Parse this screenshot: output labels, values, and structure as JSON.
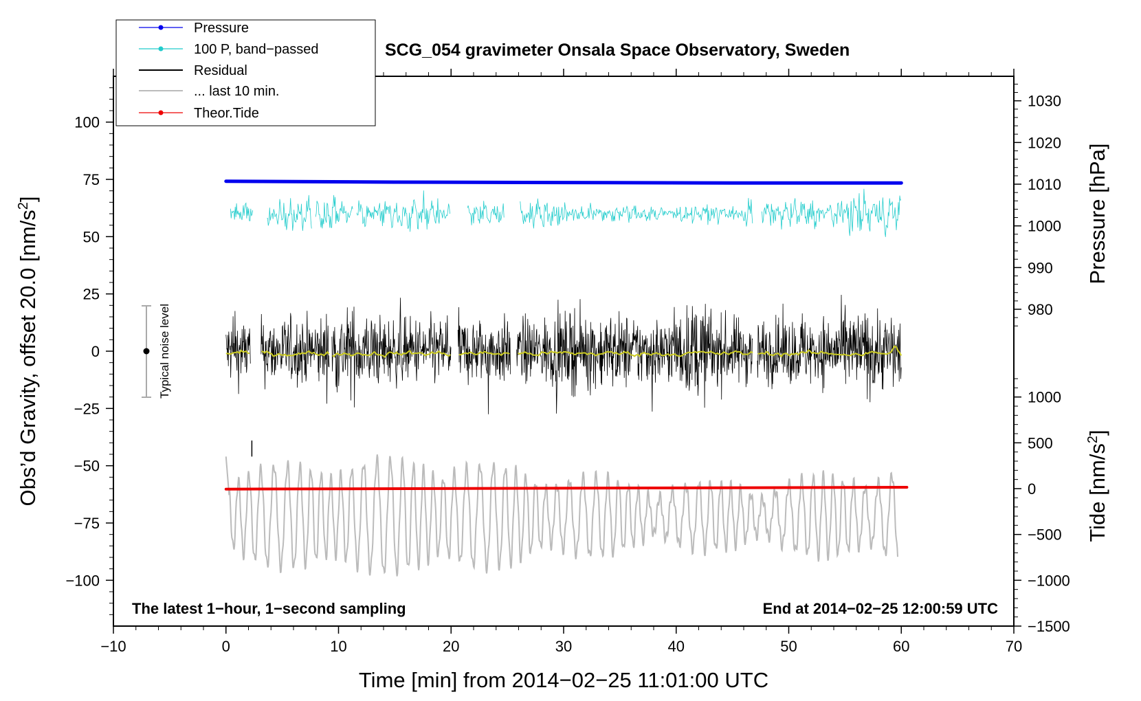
{
  "chart_data": {
    "type": "line",
    "title": "SCG_054 gravimeter Onsala Space Observatory, Sweden",
    "xlabel": "Time [min] from 2014−02−25 11:01:00 UTC",
    "ylabel_left_main": "Obs’d Gravity, offset 20.0 [nm/s",
    "ylabel_left_sup": "2",
    "ylabel_left_end": "]",
    "ylabel_right_pressure": "Pressure [hPa]",
    "ylabel_right_tide_main": "Tide [nm/s",
    "ylabel_right_tide_sup": "2",
    "ylabel_right_tide_end": "]",
    "xlim": [
      -10,
      70
    ],
    "ylim": [
      -120,
      120
    ],
    "x_ticks": [
      "−10",
      "0",
      "10",
      "20",
      "30",
      "40",
      "50",
      "60",
      "70"
    ],
    "x_tick_values": [
      -10,
      0,
      10,
      20,
      30,
      40,
      50,
      60,
      70
    ],
    "y_ticks_left": [
      "100",
      "75",
      "50",
      "25",
      "0",
      "−25",
      "−50",
      "−75",
      "−100"
    ],
    "y_tick_values_left": [
      100,
      75,
      50,
      25,
      0,
      -25,
      -50,
      -75,
      -100
    ],
    "pressure_axis": {
      "ticks": [
        "1030",
        "1020",
        "1010",
        "1000",
        "990",
        "980"
      ],
      "values": [
        1030,
        1020,
        1010,
        1000,
        990,
        980
      ],
      "left_equiv_at_980": 18.3,
      "left_per_hPa": 1.82
    },
    "tide_axis": {
      "ticks": [
        "1000",
        "500",
        "0",
        "−500",
        "−1000",
        "−1500"
      ],
      "values": [
        1000,
        500,
        0,
        -500,
        -1000,
        -1500
      ],
      "left_equiv_at_0": -60,
      "left_per_unit": 0.04
    },
    "series": [
      {
        "name": "Pressure",
        "color": "#0000ee",
        "values_hPa": [
          1010.7,
          1010.5,
          1010.4,
          1010.3,
          1010.3
        ],
        "x": [
          0,
          15,
          30,
          45,
          60
        ]
      },
      {
        "name": "100 P, band−passed",
        "color": "#22cccc",
        "center_nm_s2": 60
      },
      {
        "name": "Residual",
        "color": "#000000",
        "center_nm_s2": 0
      },
      {
        "name": "... last 10 min.",
        "color": "#bbbbbb"
      },
      {
        "name": "Theor.Tide",
        "color": "#ee0000",
        "values_nm_s2": [
          -5,
          15
        ],
        "x": [
          0,
          60.5
        ]
      }
    ],
    "smoothed_color": "#cccc22",
    "noise_bar": {
      "label": "Typical noise level",
      "x": -7,
      "center": 0,
      "half_range": 20
    },
    "annotation_left": "The latest 1−hour, 1−second sampling",
    "annotation_right": "End at 2014−02−25 12:00:59 UTC"
  }
}
